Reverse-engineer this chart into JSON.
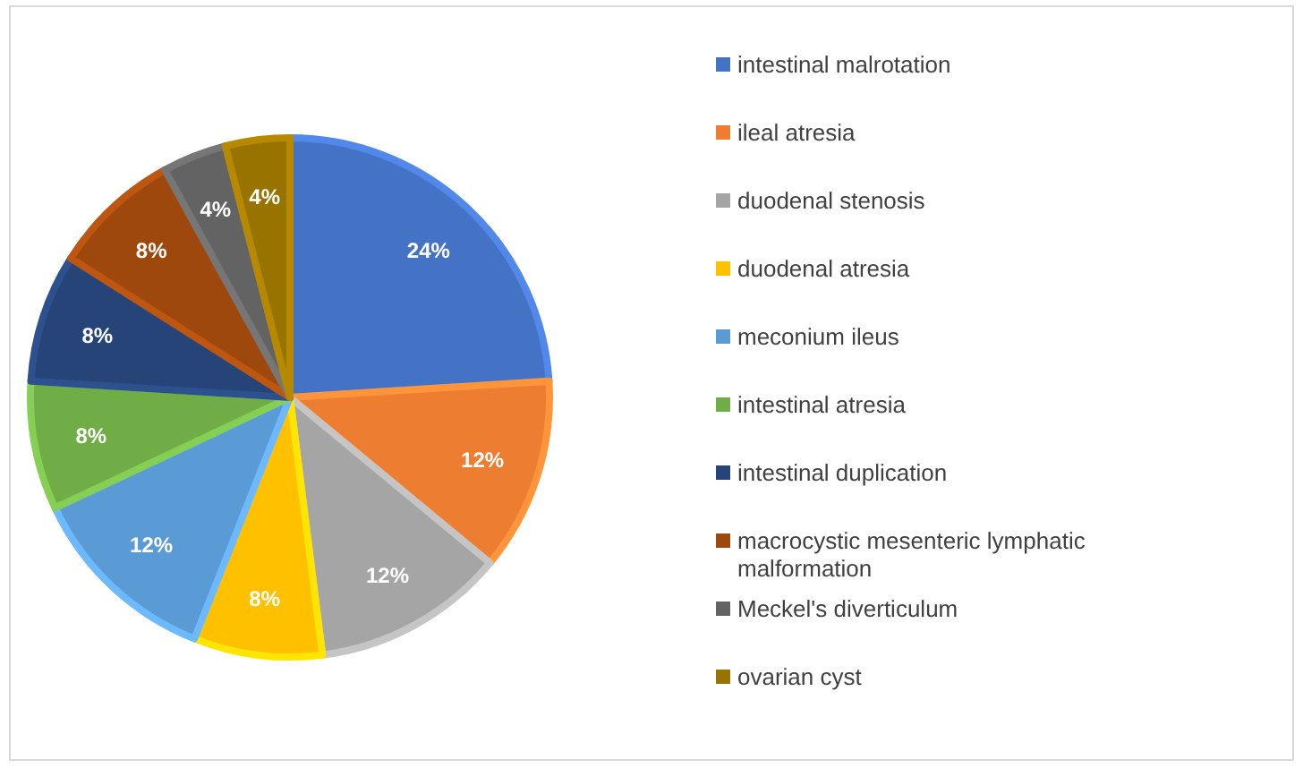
{
  "chart_data": {
    "type": "pie",
    "categories": [
      "intestinal malrotation",
      "ileal atresia",
      "duodenal stenosis",
      "duodenal atresia",
      "meconium ileus",
      "intestinal atresia",
      "intestinal duplication",
      "macrocystic mesenteric lymphatic malformation",
      "Meckel's diverticulum",
      "ovarian cyst"
    ],
    "values": [
      24,
      12,
      12,
      8,
      12,
      8,
      8,
      8,
      4,
      4
    ],
    "value_labels": [
      "24%",
      "12%",
      "12%",
      "8%",
      "12%",
      "8%",
      "8%",
      "8%",
      "4%",
      "4%"
    ],
    "colors": [
      "#4472c4",
      "#ed7d31",
      "#a5a5a5",
      "#ffc000",
      "#5b9bd5",
      "#70ad47",
      "#264478",
      "#9e480e",
      "#636363",
      "#997300"
    ],
    "legend": "right"
  }
}
